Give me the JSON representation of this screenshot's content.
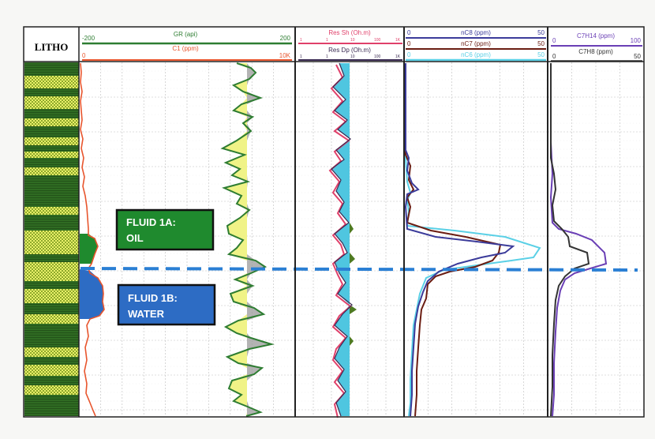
{
  "litho": {
    "title": "LITHO"
  },
  "track1": {
    "curves": [
      {
        "name": "GR (api)",
        "min": "-200",
        "max": "200",
        "color": "#2e7d32"
      },
      {
        "name": "C1 (ppm)",
        "min": "0",
        "max": "10K",
        "color": "#e8552d"
      }
    ]
  },
  "track2": {
    "curves": [
      {
        "name": "Res Sh (Oh.m)",
        "ticks": [
          "1",
          "1",
          "10",
          "100",
          "1K"
        ],
        "color": "#e0406a"
      },
      {
        "name": "Res Dp (Oh.m)",
        "ticks": [
          "1",
          "1",
          "10",
          "100",
          "1K"
        ],
        "color": "#3a2a52"
      }
    ]
  },
  "track3": {
    "curves": [
      {
        "name": "nC8 (ppm)",
        "min": "0",
        "max": "50",
        "color": "#3b3b9a"
      },
      {
        "name": "nC7 (ppm)",
        "min": "0",
        "max": "50",
        "color": "#6b1d12"
      },
      {
        "name": "nC6 (ppm)",
        "min": "0",
        "max": "50",
        "color": "#5ad0e6"
      }
    ]
  },
  "track4": {
    "curves": [
      {
        "name": "C7H14 (ppm)",
        "min": "0",
        "max": "100",
        "color": "#6a3fb5"
      },
      {
        "name": "C7H8 (ppm)",
        "min": "0",
        "max": "50",
        "color": "#333333"
      }
    ]
  },
  "zones": {
    "oil": {
      "line1": "FLUID 1A:",
      "line2": "OIL",
      "color": "#1f8a2e"
    },
    "water": {
      "line1": "FLUID 1B:",
      "line2": "WATER",
      "color": "#2d6cc4"
    },
    "contact_color": "#2a7fd4"
  }
}
